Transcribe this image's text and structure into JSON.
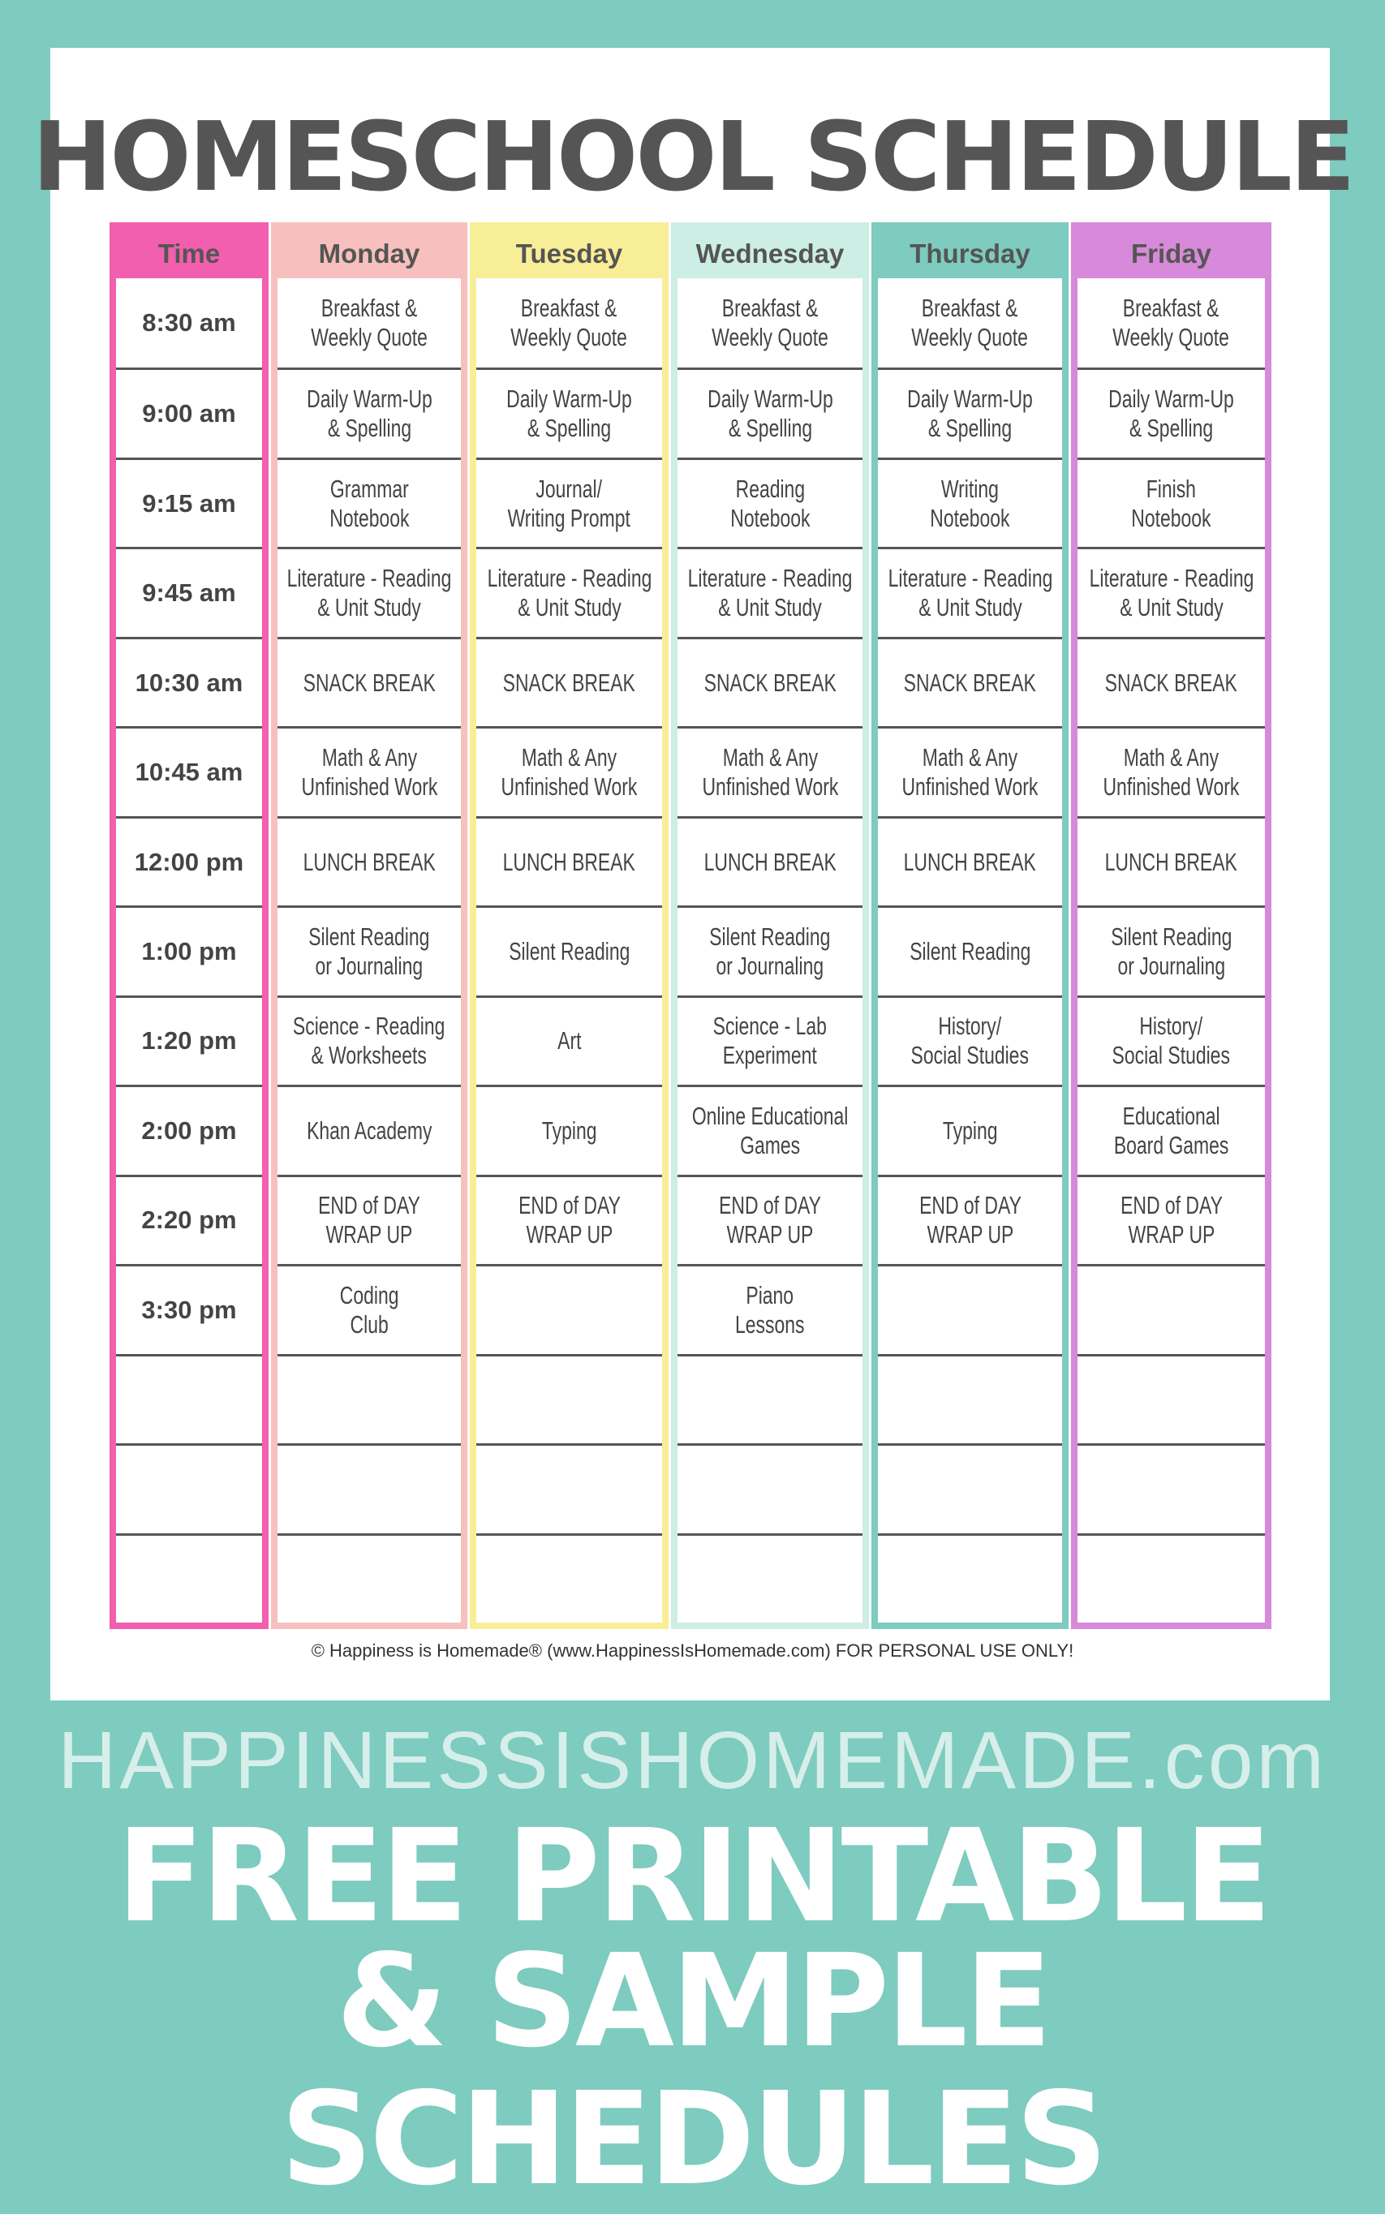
{
  "header": {
    "title": "HOMESCHOOL SCHEDULE"
  },
  "table": {
    "columns": [
      "Time",
      "Monday",
      "Tuesday",
      "Wednesday",
      "Thursday",
      "Friday"
    ],
    "rows": [
      [
        "8:30 am",
        "Breakfast &\nWeekly Quote",
        "Breakfast &\nWeekly Quote",
        "Breakfast &\nWeekly Quote",
        "Breakfast &\nWeekly Quote",
        "Breakfast &\nWeekly Quote"
      ],
      [
        "9:00 am",
        "Daily Warm-Up\n& Spelling",
        "Daily Warm-Up\n& Spelling",
        "Daily Warm-Up\n& Spelling",
        "Daily Warm-Up\n& Spelling",
        "Daily Warm-Up\n& Spelling"
      ],
      [
        "9:15 am",
        "Grammar\nNotebook",
        "Journal/\nWriting Prompt",
        "Reading\nNotebook",
        "Writing\nNotebook",
        "Finish\nNotebook"
      ],
      [
        "9:45 am",
        "Literature - Reading\n& Unit Study",
        "Literature - Reading\n& Unit Study",
        "Literature - Reading\n& Unit Study",
        "Literature - Reading\n& Unit Study",
        "Literature - Reading\n& Unit Study"
      ],
      [
        "10:30 am",
        "SNACK BREAK",
        "SNACK BREAK",
        "SNACK BREAK",
        "SNACK BREAK",
        "SNACK BREAK"
      ],
      [
        "10:45 am",
        "Math & Any\nUnfinished Work",
        "Math & Any\nUnfinished Work",
        "Math & Any\nUnfinished Work",
        "Math & Any\nUnfinished Work",
        "Math & Any\nUnfinished Work"
      ],
      [
        "12:00 pm",
        "LUNCH BREAK",
        "LUNCH BREAK",
        "LUNCH BREAK",
        "LUNCH BREAK",
        "LUNCH BREAK"
      ],
      [
        "1:00 pm",
        "Silent Reading\nor Journaling",
        "Silent Reading",
        "Silent Reading\nor Journaling",
        "Silent Reading",
        "Silent Reading\nor Journaling"
      ],
      [
        "1:20 pm",
        "Science - Reading\n& Worksheets",
        "Art",
        "Science - Lab\nExperiment",
        "History/\nSocial Studies",
        "History/\nSocial Studies"
      ],
      [
        "2:00 pm",
        "Khan Academy",
        "Typing",
        "Online Educational\nGames",
        "Typing",
        "Educational\nBoard Games"
      ],
      [
        "2:20 pm",
        "END of DAY\nWRAP UP",
        "END of DAY\nWRAP UP",
        "END of DAY\nWRAP UP",
        "END of DAY\nWRAP UP",
        "END of DAY\nWRAP UP"
      ],
      [
        "3:30 pm",
        "Coding\nClub",
        null,
        "Piano\nLessons",
        null,
        null
      ]
    ]
  },
  "footer": {
    "copyright": "© Happiness is Homemade® (www.HappinessIsHomemade.com)  FOR PERSONAL USE ONLY!",
    "site": "HAPPINESSISHOMEMADE.com",
    "headline1": "FREE PRINTABLE",
    "headline2": "& SAMPLE SCHEDULES"
  }
}
